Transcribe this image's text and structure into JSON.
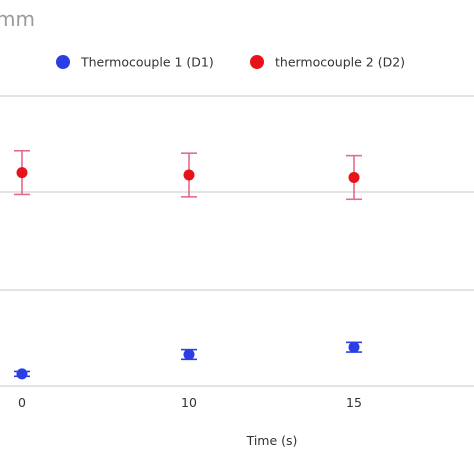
{
  "chart_data": {
    "type": "scatter",
    "title": "mm",
    "xlabel": "Time (s)",
    "ylabel": "",
    "x_ticks": [
      "0",
      "10",
      "15"
    ],
    "grid": true,
    "legend_position": "top",
    "series": [
      {
        "name": "Thermocouple 1 (D1)",
        "color": "#2b3ee6",
        "error_bar_color": "#2b3ee6",
        "points": [
          {
            "x": 0,
            "y": 0.25,
            "err": 0.05
          },
          {
            "x": 10,
            "y": 0.65,
            "err": 0.1
          },
          {
            "x": 15,
            "y": 0.8,
            "err": 0.1
          }
        ]
      },
      {
        "name": "thermocouple 2 (D2)",
        "color": "#e8131a",
        "error_bar_color": "#e56b8a",
        "points": [
          {
            "x": 0,
            "y": 4.4,
            "err": 0.45
          },
          {
            "x": 10,
            "y": 4.35,
            "err": 0.45
          },
          {
            "x": 15,
            "y": 4.3,
            "err": 0.45
          }
        ]
      }
    ]
  }
}
